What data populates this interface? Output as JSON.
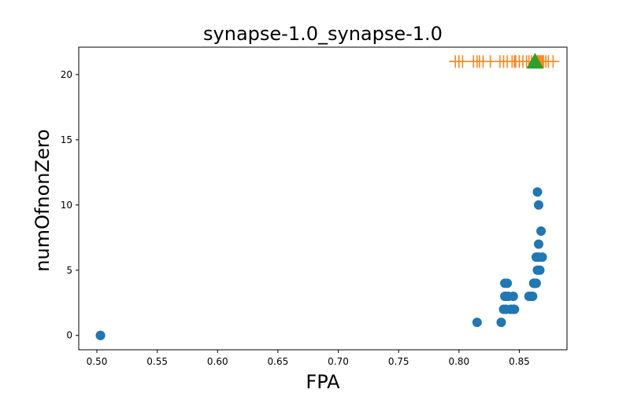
{
  "chart_data": {
    "type": "scatter",
    "title": "synapse-1.0_synapse-1.0",
    "xlabel": "FPA",
    "ylabel": "numOfnonZero",
    "xlim": [
      0.485,
      0.8895
    ],
    "ylim": [
      -1.1,
      22.1
    ],
    "xticks": [
      "0.50",
      "0.55",
      "0.60",
      "0.65",
      "0.70",
      "0.75",
      "0.80",
      "0.85"
    ],
    "yticks": [
      "0",
      "5",
      "10",
      "15",
      "20"
    ],
    "grid": false,
    "series": [
      {
        "marker": "circle",
        "color": "#1f77b4",
        "x": [
          0.503,
          0.503,
          0.815,
          0.835,
          0.837,
          0.838,
          0.839,
          0.838,
          0.84,
          0.839,
          0.841,
          0.843,
          0.843,
          0.845,
          0.845,
          0.846,
          0.858,
          0.86,
          0.861,
          0.862,
          0.862,
          0.863,
          0.864,
          0.864,
          0.865,
          0.865,
          0.866,
          0.866,
          0.867,
          0.868,
          0.869,
          0.866
        ],
        "y": [
          0,
          0,
          1,
          1,
          2,
          3,
          3,
          4,
          4,
          2,
          3,
          2,
          2,
          2,
          3,
          2,
          3,
          3,
          3,
          4,
          4,
          4,
          4,
          6,
          5,
          11,
          7,
          6,
          5,
          8,
          6,
          10
        ]
      },
      {
        "marker": "plus",
        "color": "#ff7f0e",
        "x": [
          0.797,
          0.8,
          0.803,
          0.812,
          0.815,
          0.817,
          0.82,
          0.826,
          0.834,
          0.837,
          0.84,
          0.844,
          0.846,
          0.847,
          0.85,
          0.853,
          0.856,
          0.858,
          0.86,
          0.863,
          0.864,
          0.865,
          0.866,
          0.867,
          0.868,
          0.869,
          0.87,
          0.872,
          0.874,
          0.878
        ],
        "y": [
          21,
          21,
          21,
          21,
          21,
          21,
          21,
          21,
          21,
          21,
          21,
          21,
          21,
          21,
          21,
          21,
          21,
          21,
          21,
          21,
          21,
          21,
          21,
          21,
          21,
          21,
          21,
          21,
          21,
          21
        ]
      },
      {
        "marker": "triangle",
        "color": "#2ca02c",
        "x": [
          0.863
        ],
        "y": [
          21
        ]
      }
    ]
  }
}
